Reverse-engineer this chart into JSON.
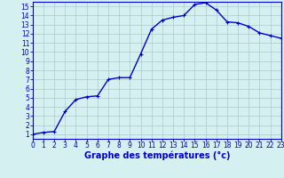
{
  "x": [
    0,
    1,
    2,
    3,
    4,
    5,
    6,
    7,
    8,
    9,
    10,
    11,
    12,
    13,
    14,
    15,
    16,
    17,
    18,
    19,
    20,
    21,
    22,
    23
  ],
  "y": [
    1,
    1.2,
    1.3,
    3.5,
    4.8,
    5.1,
    5.2,
    7.0,
    7.2,
    7.2,
    9.8,
    12.5,
    13.5,
    13.8,
    14.0,
    15.2,
    15.4,
    14.6,
    13.3,
    13.2,
    12.8,
    12.1,
    11.8,
    11.5
  ],
  "line_color": "#0000cc",
  "marker": "+",
  "marker_color": "#0000cc",
  "bg_color": "#d4f0f0",
  "grid_color": "#aacccc",
  "axis_color": "#0000cc",
  "xlabel": "Graphe des températures (°c)",
  "xlabel_color": "#0000cc",
  "xlim": [
    0,
    23
  ],
  "ylim": [
    0.5,
    15.5
  ],
  "yticks": [
    1,
    2,
    3,
    4,
    5,
    6,
    7,
    8,
    9,
    10,
    11,
    12,
    13,
    14,
    15
  ],
  "xticks": [
    0,
    1,
    2,
    3,
    4,
    5,
    6,
    7,
    8,
    9,
    10,
    11,
    12,
    13,
    14,
    15,
    16,
    17,
    18,
    19,
    20,
    21,
    22,
    23
  ],
  "tick_fontsize": 5.5,
  "xlabel_fontsize": 7,
  "line_width": 1.0,
  "marker_size": 3.5
}
